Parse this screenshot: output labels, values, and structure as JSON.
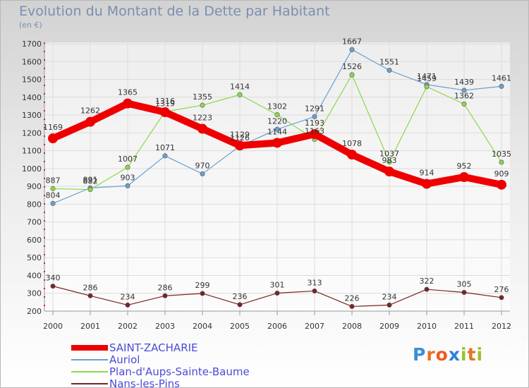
{
  "title": "Evolution du Montant de la Dette par Habitant",
  "subtitle": "(en €)",
  "logo": {
    "text": "Proxiti",
    "letter_colors": [
      "#3b8fd6",
      "#e8731f",
      "#ee5c1f",
      "#2f7fd4",
      "#9bc22a",
      "#e8731f",
      "#9bc22a"
    ]
  },
  "chart_data": {
    "type": "line",
    "x": [
      "2000",
      "2001",
      "2002",
      "2003",
      "2004",
      "2005",
      "2006",
      "2007",
      "2008",
      "2009",
      "2010",
      "2011",
      "2012"
    ],
    "ylim": [
      200,
      1700
    ],
    "yticks": [
      200,
      300,
      400,
      500,
      600,
      700,
      800,
      900,
      1000,
      1100,
      1200,
      1300,
      1400,
      1500,
      1600,
      1700
    ],
    "grid": true,
    "legend_position": "bottom-left",
    "series": [
      {
        "name": "SAINT-ZACHARIE",
        "color": "#ee0000",
        "thick": true,
        "values": [
          1169,
          1262,
          1365,
          1316,
          1223,
          1129,
          1144,
          1193,
          1078,
          983,
          914,
          952,
          909
        ]
      },
      {
        "name": "Auriol",
        "color": "#6aa0cf",
        "thick": false,
        "values": [
          804,
          891,
          903,
          1071,
          970,
          1126,
          1220,
          1291,
          1667,
          1551,
          1471,
          1439,
          1461
        ]
      },
      {
        "name": "Plan-d'Aups-Sainte-Baume",
        "color": "#8ed64a",
        "thick": false,
        "values": [
          887,
          882,
          1007,
          1319,
          1355,
          1414,
          1302,
          1163,
          1526,
          1037,
          1459,
          1362,
          1035
        ]
      },
      {
        "name": "Nans-les-Pins",
        "color": "#7a2323",
        "thick": false,
        "values": [
          340,
          286,
          234,
          286,
          299,
          236,
          301,
          313,
          226,
          234,
          322,
          305,
          276
        ]
      }
    ]
  }
}
